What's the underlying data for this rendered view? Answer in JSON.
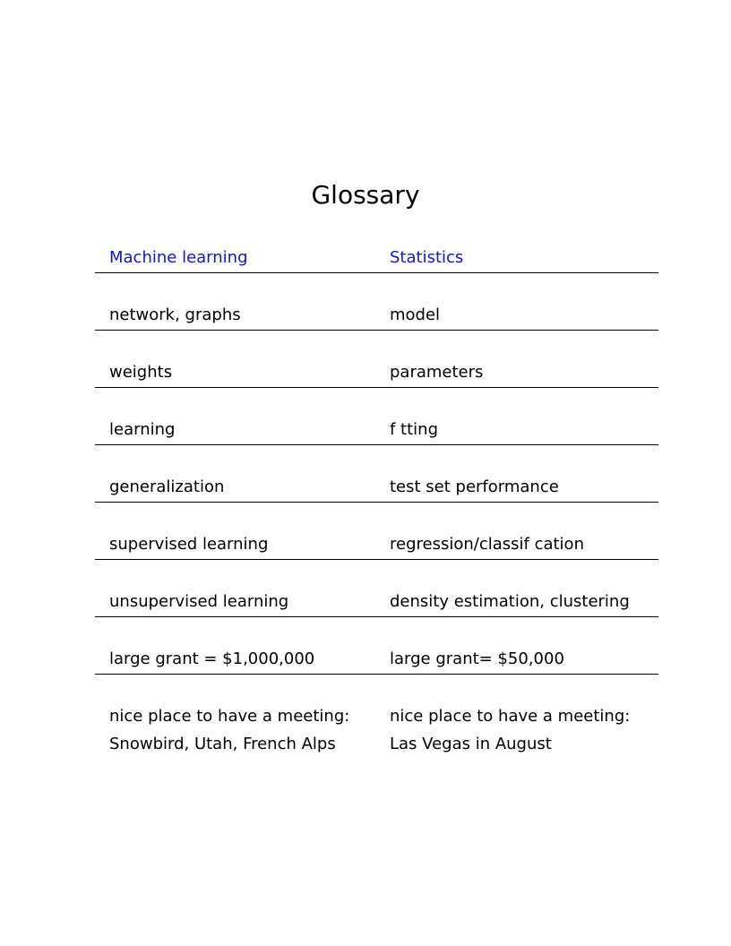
{
  "title": "Glossary",
  "header": {
    "col1": "Machine learning",
    "col2": "Statistics"
  },
  "rows": [
    {
      "ml": "network, graphs",
      "stats": "model"
    },
    {
      "ml": "weights",
      "stats": "parameters"
    },
    {
      "ml": "learning",
      "stats": "f tting"
    },
    {
      "ml": "generalization",
      "stats": "test set performance"
    },
    {
      "ml": "supervised learning",
      "stats": "regression/classif cation"
    },
    {
      "ml": "unsupervised learning",
      "stats": "density estimation, clustering"
    },
    {
      "ml": "large grant = $1,000,000",
      "stats": "large grant= $50,000"
    }
  ],
  "last_row": {
    "ml_line1": "nice place to have a meeting:",
    "ml_line2": "Snowbird, Utah, French Alps",
    "stats_line1": "nice place to have a meeting:",
    "stats_line2": "Las Vegas in August"
  }
}
